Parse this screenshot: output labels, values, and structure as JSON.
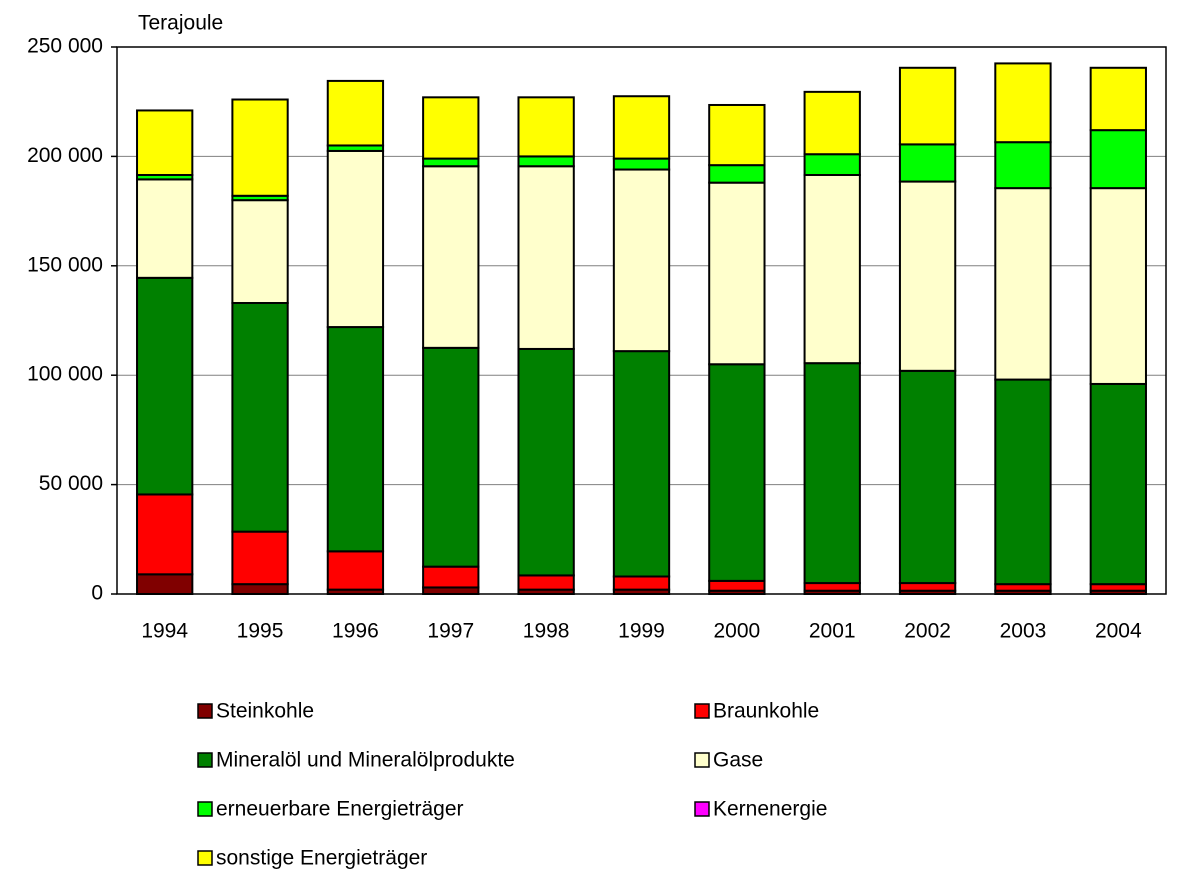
{
  "chart_data": {
    "type": "stacked_bar",
    "y_label": "Terajoule",
    "categories": [
      "1994",
      "1995",
      "1996",
      "1997",
      "1998",
      "1999",
      "2000",
      "2001",
      "2002",
      "2003",
      "2004"
    ],
    "series": [
      {
        "name": "Steinkohle",
        "color": "#800000",
        "values": [
          9000,
          4500,
          2000,
          3000,
          2000,
          2000,
          1500,
          1500,
          1500,
          1500,
          1500
        ]
      },
      {
        "name": "Braunkohle",
        "color": "#ff0000",
        "values": [
          36500,
          24000,
          17500,
          9500,
          6500,
          6000,
          4500,
          3500,
          3500,
          3000,
          3000
        ]
      },
      {
        "name": "Mineralöl und Mineralölprodukte",
        "color": "#008000",
        "values": [
          99000,
          104500,
          102500,
          100000,
          103500,
          103000,
          99000,
          100500,
          97000,
          93500,
          91500
        ]
      },
      {
        "name": "Gase",
        "color": "#ffffcc",
        "values": [
          45000,
          47000,
          80500,
          83000,
          83500,
          83000,
          83000,
          86000,
          86500,
          87500,
          89500
        ]
      },
      {
        "name": "erneuerbare Energieträger",
        "color": "#00ff00",
        "values": [
          2000,
          2000,
          2500,
          3500,
          4500,
          5000,
          8000,
          9500,
          17000,
          21000,
          26500
        ]
      },
      {
        "name": "Kernenergie",
        "color": "#ff00ff",
        "values": [
          0,
          0,
          0,
          0,
          0,
          0,
          0,
          0,
          0,
          0,
          0
        ]
      },
      {
        "name": "sonstige Energieträger",
        "color": "#ffff00",
        "values": [
          29500,
          44000,
          29500,
          28000,
          27000,
          28500,
          27500,
          28500,
          35000,
          36000,
          28500
        ]
      }
    ],
    "ylim": [
      0,
      250000
    ],
    "yticks": [
      0,
      {
        "value": 50000,
        "label": "50 000"
      },
      {
        "value": 100000,
        "label": "100 000"
      },
      {
        "value": 150000,
        "label": "150 000"
      },
      {
        "value": 200000,
        "label": "200 000"
      },
      {
        "value": 250000,
        "label": "250 000"
      }
    ],
    "grid": true
  }
}
